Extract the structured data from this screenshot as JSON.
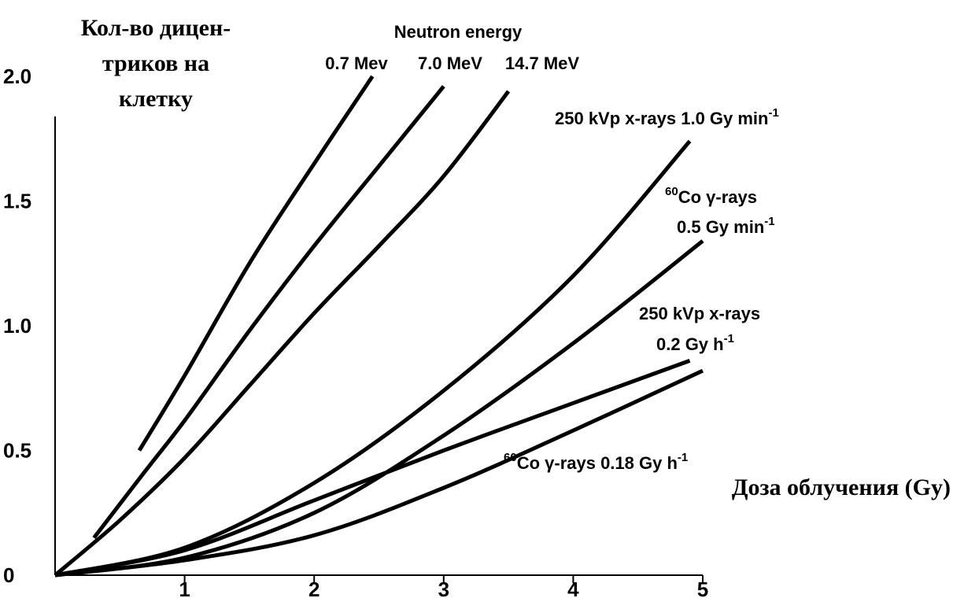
{
  "chart_data": {
    "type": "line",
    "ylabel_lines": [
      "Кол-во дицен-",
      "триков на",
      "клетку"
    ],
    "xlabel": "Доза облучения (Gy)",
    "xlim": [
      0,
      5
    ],
    "ylim": [
      0,
      2.0
    ],
    "x_ticks": [
      "1",
      "2",
      "3",
      "4",
      "5"
    ],
    "y_ticks": [
      "0",
      "0.5",
      "1.0",
      "1.5",
      "2.0"
    ],
    "annotations": {
      "neutron_energy": "Neutron energy",
      "n07": "0.7 Mev",
      "n70": "7.0 MeV",
      "n147": "14.7 MeV",
      "xray_fast": {
        "main": "250 kVp x-rays 1.0 Gy min",
        "sup": "-1"
      },
      "co_fast_1": {
        "sup": "60",
        "main": "Co γ-rays"
      },
      "co_fast_2": {
        "main": "0.5 Gy min",
        "sup": "-1"
      },
      "xray_slow_1": {
        "main": "250 kVp x-rays"
      },
      "xray_slow_2": {
        "main": "0.2 Gy h",
        "sup": "-1"
      },
      "co_slow": {
        "sup": "60",
        "main": "Co γ-rays 0.18 Gy h",
        "sup2": "-1"
      }
    },
    "series": [
      {
        "name": "0.7 Mev",
        "points": [
          [
            0.65,
            0.5
          ],
          [
            1.0,
            0.8
          ],
          [
            1.5,
            1.25
          ],
          [
            2.0,
            1.65
          ],
          [
            2.45,
            2.0
          ]
        ]
      },
      {
        "name": "7.0 MeV",
        "points": [
          [
            0.3,
            0.15
          ],
          [
            0.7,
            0.42
          ],
          [
            1.0,
            0.62
          ],
          [
            1.5,
            0.98
          ],
          [
            2.0,
            1.32
          ],
          [
            2.5,
            1.64
          ],
          [
            3.0,
            1.96
          ]
        ]
      },
      {
        "name": "14.7 MeV",
        "points": [
          [
            0.0,
            0.0
          ],
          [
            0.5,
            0.22
          ],
          [
            1.0,
            0.47
          ],
          [
            1.5,
            0.76
          ],
          [
            2.0,
            1.05
          ],
          [
            2.5,
            1.32
          ],
          [
            3.0,
            1.6
          ],
          [
            3.5,
            1.94
          ]
        ]
      },
      {
        "name": "250 kVp x-rays 1.0 Gy min-1",
        "points": [
          [
            0.0,
            0.0
          ],
          [
            1.0,
            0.11
          ],
          [
            2.0,
            0.37
          ],
          [
            3.0,
            0.74
          ],
          [
            4.0,
            1.2
          ],
          [
            4.9,
            1.74
          ]
        ]
      },
      {
        "name": "60Co γ-rays 0.5 Gy min-1",
        "points": [
          [
            0.0,
            0.0
          ],
          [
            1.0,
            0.07
          ],
          [
            2.0,
            0.25
          ],
          [
            3.0,
            0.56
          ],
          [
            4.0,
            0.93
          ],
          [
            5.0,
            1.34
          ]
        ]
      },
      {
        "name": "250 kVp x-rays 0.2 Gy h-1",
        "points": [
          [
            0.0,
            0.0
          ],
          [
            1.0,
            0.1
          ],
          [
            2.0,
            0.3
          ],
          [
            3.0,
            0.5
          ],
          [
            4.0,
            0.69
          ],
          [
            4.9,
            0.86
          ]
        ]
      },
      {
        "name": "60Co γ-rays 0.18 Gy h-1",
        "points": [
          [
            0.0,
            0.0
          ],
          [
            1.0,
            0.06
          ],
          [
            2.0,
            0.16
          ],
          [
            3.0,
            0.35
          ],
          [
            4.0,
            0.58
          ],
          [
            5.0,
            0.82
          ]
        ]
      }
    ]
  }
}
